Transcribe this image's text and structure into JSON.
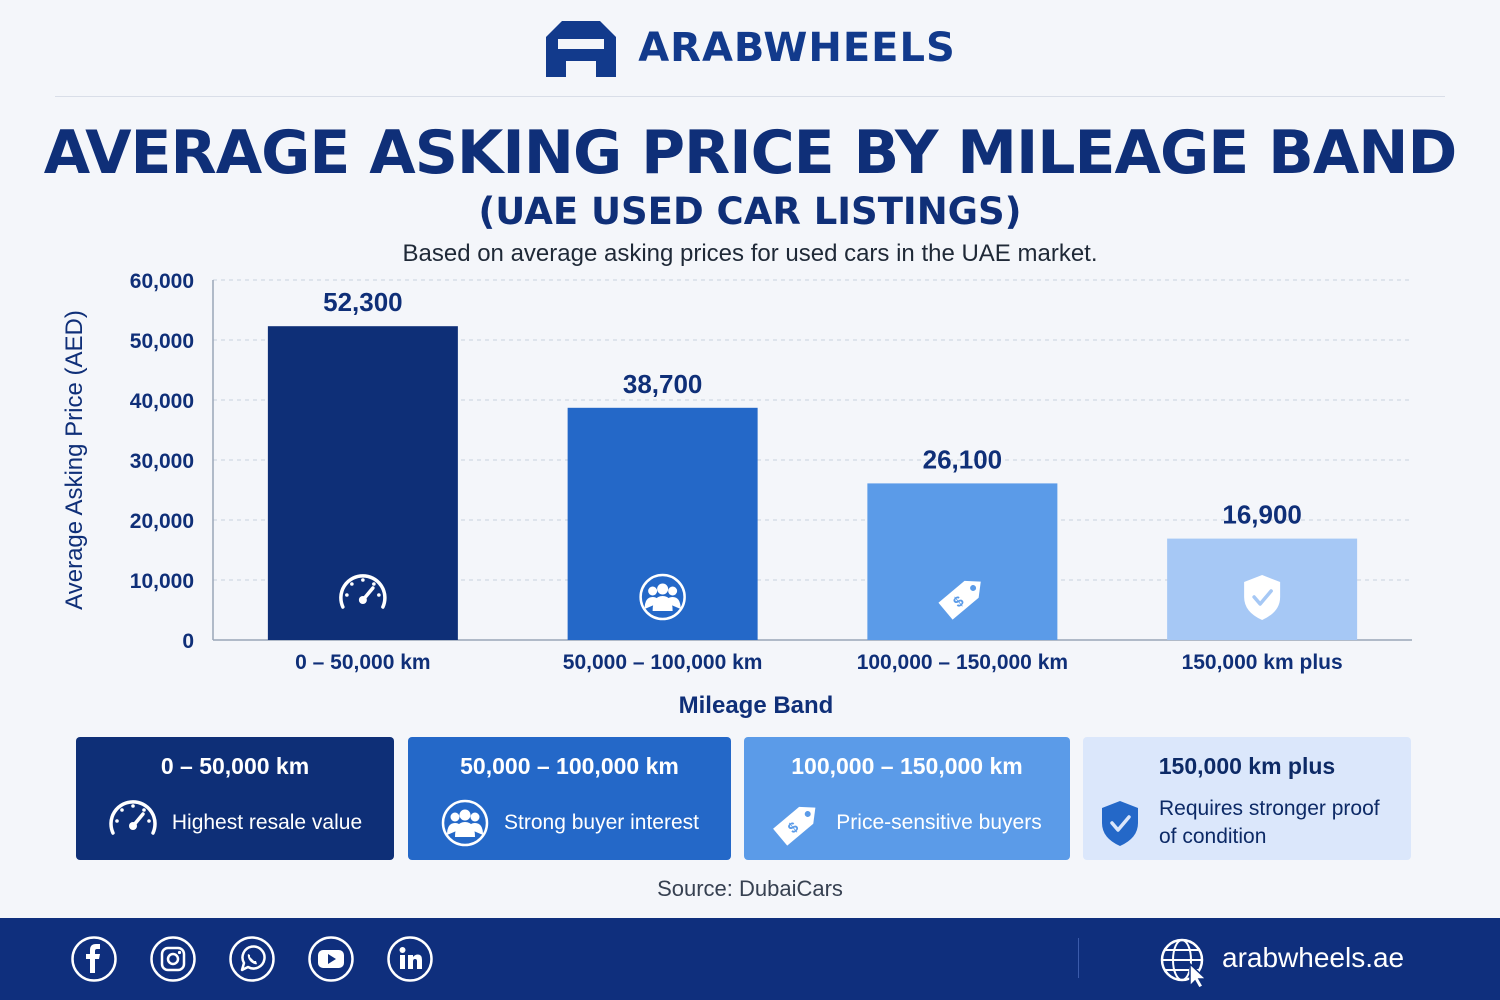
{
  "brand": {
    "name": "ARABWHEELS"
  },
  "page": {
    "title": "AVERAGE ASKING PRICE BY MILEAGE BAND",
    "subtitle": "(UAE USED CAR LISTINGS)",
    "note": "Based on average asking prices for used cars in the UAE market.",
    "source": "Source: DubaiCars"
  },
  "chart_data": {
    "type": "bar",
    "title": "AVERAGE ASKING PRICE BY MILEAGE BAND",
    "subtitle": "(UAE USED CAR LISTINGS)",
    "xlabel": "Mileage Band",
    "ylabel": "Average Asking Price (AED)",
    "categories": [
      "0 – 50,000 km",
      "50,000 – 100,000 km",
      "100,000 – 150,000 km",
      "150,000 km plus"
    ],
    "values": [
      52300,
      38700,
      26100,
      16900
    ],
    "value_labels": [
      "52,300",
      "38,700",
      "26,100",
      "16,900"
    ],
    "ylim": [
      0,
      60000
    ],
    "yticks": [
      0,
      10000,
      20000,
      30000,
      40000,
      50000,
      60000
    ],
    "ytick_labels": [
      "0",
      "10,000",
      "20,000",
      "30,000",
      "40,000",
      "50,000",
      "60,000"
    ],
    "grid": true,
    "legend": "none",
    "bar_colors": [
      "#0e2f77",
      "#2468c8",
      "#5b9be8",
      "#a6c8f5"
    ],
    "bar_icons": [
      "speedometer-icon",
      "group-icon",
      "price-tag-icon",
      "shield-check-icon"
    ]
  },
  "cards": [
    {
      "title": "0 – 50,000 km",
      "text": "Highest resale value",
      "icon": "speedometer-icon",
      "bg": "#0e2f77",
      "fg": "#ffffff",
      "icon_color": "#ffffff"
    },
    {
      "title": "50,000 – 100,000 km",
      "text": "Strong buyer interest",
      "icon": "group-icon",
      "bg": "#2468c8",
      "fg": "#ffffff",
      "icon_color": "#ffffff"
    },
    {
      "title": "100,000 – 150,000 km",
      "text": "Price-sensitive buyers",
      "icon": "price-tag-icon",
      "bg": "#5b9be8",
      "fg": "#ffffff",
      "icon_color": "#ffffff"
    },
    {
      "title": "150,000 km plus",
      "text": "Requires stronger proof of condition",
      "icon": "shield-check-icon",
      "bg": "#dbe7fb",
      "fg": "#0d2a66",
      "icon_color": "#2468c8"
    }
  ],
  "footer": {
    "social": [
      "facebook-icon",
      "instagram-icon",
      "whatsapp-icon",
      "youtube-icon",
      "linkedin-icon"
    ],
    "website": "arabwheels.ae"
  }
}
